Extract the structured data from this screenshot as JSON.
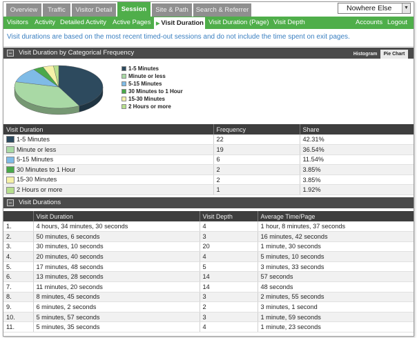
{
  "tabs": [
    {
      "label": "Overview",
      "active": false
    },
    {
      "label": "Traffic",
      "active": false
    },
    {
      "label": "Visitor Detail",
      "active": false
    },
    {
      "label": "Session",
      "active": true
    },
    {
      "label": "Site & Path",
      "active": false
    },
    {
      "label": "Search & Referrer",
      "active": false
    }
  ],
  "site_selector": {
    "value": "Nowhere Else"
  },
  "subnav": [
    {
      "label": "Visitors",
      "active": false
    },
    {
      "label": "Activity",
      "active": false
    },
    {
      "label": "Detailed Activity",
      "active": false
    },
    {
      "label": "Active Pages",
      "active": false
    },
    {
      "label": "Visit Duration",
      "active": true
    },
    {
      "label": "Visit Duration (Page)",
      "active": false
    },
    {
      "label": "Visit Depth",
      "active": false
    }
  ],
  "subnav_right": {
    "accounts": "Accounts",
    "logout": "Logout"
  },
  "info_text": "Visit durations are based on the most recent timed-out sessions and do not include the time spent on exit pages.",
  "section1": {
    "title": "Visit Duration by Categorical Frequency",
    "toggle": "−",
    "view_tabs": [
      "Histogram",
      "Pie Chart"
    ],
    "active_view": "Pie Chart"
  },
  "chart_data": {
    "type": "pie",
    "title": "",
    "categories": [
      "1-5 Minutes",
      "Minute or less",
      "5-15 Minutes",
      "30 Minutes to 1 Hour",
      "15-30 Minutes",
      "2 Hours or more"
    ],
    "values": [
      22,
      19,
      6,
      2,
      2,
      1
    ],
    "colors": [
      "#2d4a5e",
      "#a9d9a5",
      "#7fbbe6",
      "#4aa84a",
      "#f5f1a8",
      "#b7df8e"
    ],
    "legend_position": "right"
  },
  "freq_table": {
    "headers": [
      "Visit Duration",
      "Frequency",
      "Share"
    ],
    "rows": [
      {
        "label": "1-5 Minutes",
        "freq": "22",
        "share": "42.31%",
        "color": "#2d4a5e"
      },
      {
        "label": "Minute or less",
        "freq": "19",
        "share": "36.54%",
        "color": "#a9d9a5"
      },
      {
        "label": "5-15 Minutes",
        "freq": "6",
        "share": "11.54%",
        "color": "#7fbbe6"
      },
      {
        "label": "30 Minutes to 1 Hour",
        "freq": "2",
        "share": "3.85%",
        "color": "#4aa84a"
      },
      {
        "label": "15-30 Minutes",
        "freq": "2",
        "share": "3.85%",
        "color": "#f5f1a8"
      },
      {
        "label": "2 Hours or more",
        "freq": "1",
        "share": "1.92%",
        "color": "#b7df8e"
      }
    ]
  },
  "section2": {
    "title": "Visit Durations",
    "toggle": "−"
  },
  "visits_table": {
    "headers": [
      "",
      "Visit Duration",
      "Visit Depth",
      "Average Time/Page"
    ],
    "rows": [
      {
        "n": "1.",
        "dur": "4 hours, 34 minutes, 30 seconds",
        "depth": "4",
        "avg": "1 hour, 8 minutes, 37 seconds"
      },
      {
        "n": "2.",
        "dur": "50 minutes, 6 seconds",
        "depth": "3",
        "avg": "16 minutes, 42 seconds"
      },
      {
        "n": "3.",
        "dur": "30 minutes, 10 seconds",
        "depth": "20",
        "avg": "1 minute, 30 seconds"
      },
      {
        "n": "4.",
        "dur": "20 minutes, 40 seconds",
        "depth": "4",
        "avg": "5 minutes, 10 seconds"
      },
      {
        "n": "5.",
        "dur": "17 minutes, 48 seconds",
        "depth": "5",
        "avg": "3 minutes, 33 seconds"
      },
      {
        "n": "6.",
        "dur": "13 minutes, 28 seconds",
        "depth": "14",
        "avg": "57 seconds"
      },
      {
        "n": "7.",
        "dur": "11 minutes, 20 seconds",
        "depth": "14",
        "avg": "48 seconds"
      },
      {
        "n": "8.",
        "dur": "8 minutes, 45 seconds",
        "depth": "3",
        "avg": "2 minutes, 55 seconds"
      },
      {
        "n": "9.",
        "dur": "6 minutes, 2 seconds",
        "depth": "2",
        "avg": "3 minutes, 1 second"
      },
      {
        "n": "10.",
        "dur": "5 minutes, 57 seconds",
        "depth": "3",
        "avg": "1 minute, 59 seconds"
      },
      {
        "n": "11.",
        "dur": "5 minutes, 35 seconds",
        "depth": "4",
        "avg": "1 minute, 23 seconds"
      }
    ]
  }
}
